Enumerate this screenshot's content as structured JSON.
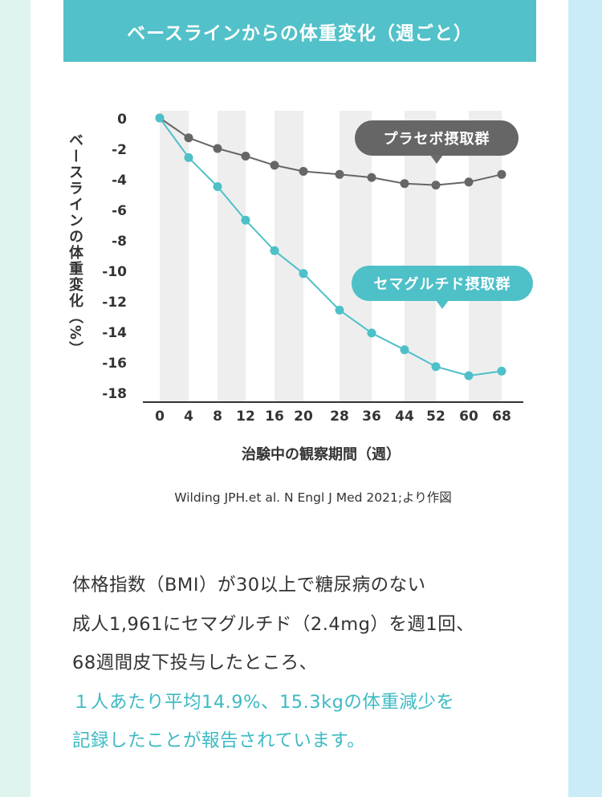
{
  "colors": {
    "banner": "#52c1c9",
    "placebo": "#666666",
    "semaglutide": "#4ec0c8",
    "band": "#eeeeee",
    "bg_left": "#e0f4ef",
    "bg_right": "#c9ecf8",
    "highlight": "#3dbac3"
  },
  "chart_data": {
    "type": "line",
    "title": "ベースラインからの体重変化（週ごと）",
    "xlabel": "治験中の観察期間（週）",
    "ylabel": "ベースラインの体重変化（%）",
    "x": [
      0,
      4,
      8,
      12,
      16,
      20,
      28,
      36,
      44,
      52,
      60,
      68
    ],
    "x_tick_labels": [
      "0",
      "4",
      "8",
      "12",
      "16",
      "20",
      "28",
      "36",
      "44",
      "52",
      "60",
      "68"
    ],
    "y_ticks": [
      0,
      -2,
      -4,
      -6,
      -8,
      -10,
      -12,
      -14,
      -16,
      -18
    ],
    "y_tick_labels": [
      "0",
      "-2",
      "-4",
      "-6",
      "-8",
      "-10",
      "-12",
      "-14",
      "-16",
      "-18"
    ],
    "ylim": [
      -18,
      0
    ],
    "grid": false,
    "series": [
      {
        "name": "プラセボ摂取群",
        "color": "#666666",
        "values": [
          0,
          -1.3,
          -2.0,
          -2.5,
          -3.1,
          -3.5,
          -3.7,
          -3.9,
          -4.3,
          -4.4,
          -4.2,
          -3.7
        ]
      },
      {
        "name": "セマグルチド摂取群",
        "color": "#4ec0c8",
        "values": [
          0,
          -2.6,
          -4.5,
          -6.7,
          -8.7,
          -10.2,
          -12.6,
          -14.1,
          -15.2,
          -16.3,
          -16.9,
          -16.6
        ]
      }
    ],
    "annotations": [
      "プラセボ摂取群",
      "セマグルチド摂取群"
    ]
  },
  "source": "Wilding JPH.et al. N Engl J Med 2021;より作図",
  "body": {
    "line1": "体格指数（BMI）が30以上で糖尿病のない",
    "line2": "成人1,961にセマグルチド（2.4mg）を週1回、",
    "line3": "68週間皮下投与したところ、",
    "line4": "１人あたり平均14.9%、15.3kgの体重減少を",
    "line5": "記録したことが報告されています。"
  }
}
